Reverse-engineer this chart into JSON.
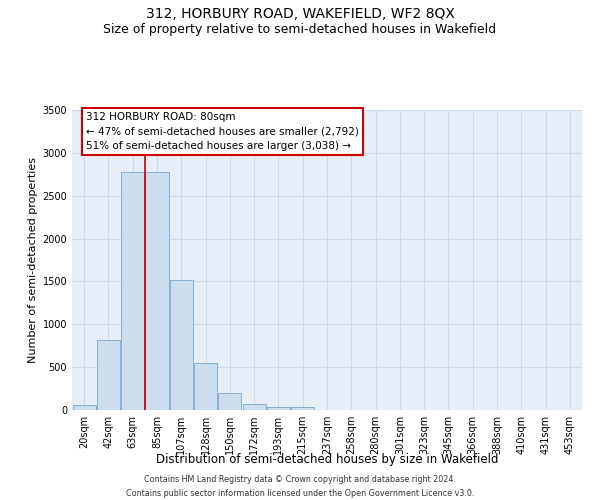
{
  "title": "312, HORBURY ROAD, WAKEFIELD, WF2 8QX",
  "subtitle": "Size of property relative to semi-detached houses in Wakefield",
  "xlabel": "Distribution of semi-detached houses by size in Wakefield",
  "ylabel": "Number of semi-detached properties",
  "categories": [
    "20sqm",
    "42sqm",
    "63sqm",
    "85sqm",
    "107sqm",
    "128sqm",
    "150sqm",
    "172sqm",
    "193sqm",
    "215sqm",
    "237sqm",
    "258sqm",
    "280sqm",
    "301sqm",
    "323sqm",
    "345sqm",
    "366sqm",
    "388sqm",
    "410sqm",
    "431sqm",
    "453sqm"
  ],
  "values": [
    60,
    820,
    2780,
    2780,
    1520,
    545,
    195,
    65,
    40,
    30,
    0,
    0,
    0,
    0,
    0,
    0,
    0,
    0,
    0,
    0,
    0
  ],
  "bar_color": "#ccdded",
  "bar_edge_color": "#7aaacc",
  "annotation_text_line1": "312 HORBURY ROAD: 80sqm",
  "annotation_text_line2": "← 47% of semi-detached houses are smaller (2,792)",
  "annotation_text_line3": "51% of semi-detached houses are larger (3,038) →",
  "vline_color": "#cc0000",
  "annotation_box_color": "#ffffff",
  "annotation_box_edge": "#cc0000",
  "ylim": [
    0,
    3500
  ],
  "yticks": [
    0,
    500,
    1000,
    1500,
    2000,
    2500,
    3000,
    3500
  ],
  "grid_color": "#d0d8ea",
  "background_color": "#e8eef8",
  "footer_line1": "Contains HM Land Registry data © Crown copyright and database right 2024.",
  "footer_line2": "Contains public sector information licensed under the Open Government Licence v3.0.",
  "title_fontsize": 10,
  "subtitle_fontsize": 9,
  "tick_fontsize": 7,
  "ylabel_fontsize": 8,
  "xlabel_fontsize": 8.5,
  "annotation_fontsize": 7.5,
  "vline_x": 2.5
}
